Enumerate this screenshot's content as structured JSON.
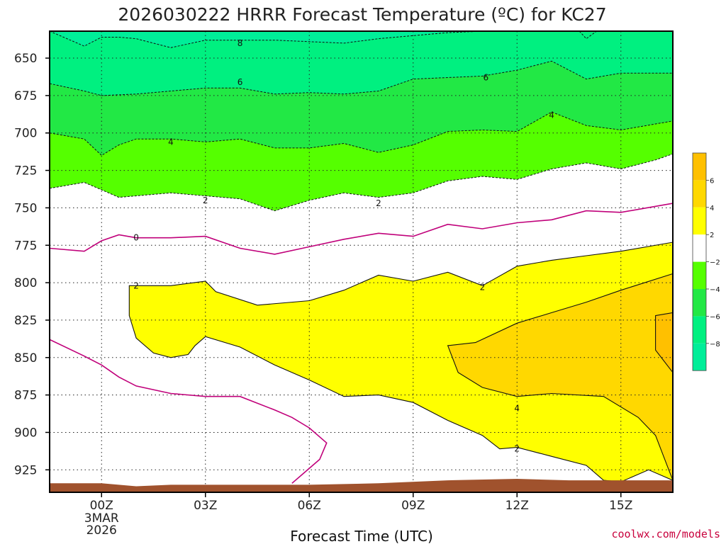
{
  "colors": {
    "frame": "#000000",
    "fill_le_neg8": "#00ee99",
    "fill_neg8_neg6": "#00f080",
    "fill_neg6_neg4": "#22e845",
    "fill_neg4_neg2": "#55ff00",
    "fill_neg2_2": "#ffffff",
    "fill_2_4": "#ffff00",
    "fill_4_6": "#ffd800",
    "fill_ge_6": "#ffc000",
    "zero_line": "#c0007a",
    "ground": "#a0522d",
    "credit": "#c8003c"
  },
  "chart_data": {
    "type": "time-height contour",
    "title": "2026030222 HRRR Forecast Temperature (ºC) for KC27",
    "xlabel": "Forecast Time (UTC)",
    "x_range_hours": [
      -1.5,
      16.5
    ],
    "x_ticks": [
      {
        "hour": 0,
        "label": "00Z",
        "sub": [
          "3MAR",
          "2026"
        ]
      },
      {
        "hour": 3,
        "label": "03Z"
      },
      {
        "hour": 6,
        "label": "06Z"
      },
      {
        "hour": 9,
        "label": "09Z"
      },
      {
        "hour": 12,
        "label": "12Z"
      },
      {
        "hour": 15,
        "label": "15Z"
      }
    ],
    "y_range_hpa": [
      632,
      940
    ],
    "y_ticks": [
      650,
      675,
      700,
      725,
      750,
      775,
      800,
      825,
      850,
      875,
      900,
      925
    ],
    "contour_labels": [
      {
        "text": "8",
        "hour": 4.0,
        "hpa": 640
      },
      {
        "text": "6",
        "hour": 4.0,
        "hpa": 666
      },
      {
        "text": "6",
        "hour": 11.1,
        "hpa": 663
      },
      {
        "text": "4",
        "hour": 13.0,
        "hpa": 688
      },
      {
        "text": "4",
        "hour": 2.0,
        "hpa": 706
      },
      {
        "text": "2",
        "hour": 3.0,
        "hpa": 745
      },
      {
        "text": "2",
        "hour": 8.0,
        "hpa": 747
      },
      {
        "text": "0",
        "hour": 1.0,
        "hpa": 770
      },
      {
        "text": "2",
        "hour": 1.0,
        "hpa": 802
      },
      {
        "text": "2",
        "hour": 11.0,
        "hpa": 803
      },
      {
        "text": "4",
        "hour": 12.0,
        "hpa": 884
      },
      {
        "text": "2",
        "hour": 12.0,
        "hpa": 911
      }
    ],
    "isotherm_0C": [
      [
        -1.5,
        777
      ],
      [
        -0.5,
        779
      ],
      [
        0,
        772
      ],
      [
        0.5,
        768
      ],
      [
        1,
        770
      ],
      [
        2,
        770
      ],
      [
        3,
        769
      ],
      [
        4,
        777
      ],
      [
        5,
        781
      ],
      [
        6,
        776
      ],
      [
        7,
        771
      ],
      [
        8,
        767
      ],
      [
        9,
        769
      ],
      [
        10,
        761
      ],
      [
        11,
        764
      ],
      [
        12,
        760
      ],
      [
        13,
        758
      ],
      [
        14,
        752
      ],
      [
        15,
        753
      ],
      [
        16,
        749
      ],
      [
        16.5,
        747
      ]
    ],
    "isotherm_0C_lower": [
      [
        -1.5,
        838
      ],
      [
        -0.5,
        849
      ],
      [
        0,
        855
      ],
      [
        0.5,
        863
      ],
      [
        1,
        869
      ],
      [
        2,
        874
      ],
      [
        3,
        876
      ],
      [
        4,
        876
      ],
      [
        5,
        885
      ],
      [
        5.5,
        890
      ],
      [
        6,
        897
      ],
      [
        6.5,
        907
      ],
      [
        6.3,
        918
      ],
      [
        5.8,
        928
      ],
      [
        5.5,
        934
      ]
    ],
    "region_2C": [
      [
        0.8,
        802
      ],
      [
        2,
        802
      ],
      [
        3,
        799
      ],
      [
        3.3,
        806
      ],
      [
        4.5,
        815
      ],
      [
        6,
        812
      ],
      [
        7,
        805
      ],
      [
        8,
        795
      ],
      [
        9,
        799
      ],
      [
        10,
        793
      ],
      [
        11,
        802
      ],
      [
        12,
        789
      ],
      [
        13,
        785
      ],
      [
        14,
        782
      ],
      [
        15,
        779
      ],
      [
        16.5,
        773
      ],
      [
        16.5,
        932
      ],
      [
        15.8,
        925
      ],
      [
        15,
        933
      ],
      [
        14.5,
        932
      ],
      [
        14,
        922
      ],
      [
        13,
        916
      ],
      [
        12,
        910
      ],
      [
        11.5,
        911
      ],
      [
        11,
        902
      ],
      [
        10,
        892
      ],
      [
        9,
        880
      ],
      [
        8,
        875
      ],
      [
        7,
        876
      ],
      [
        6,
        865
      ],
      [
        5,
        855
      ],
      [
        4,
        843
      ],
      [
        3,
        836
      ],
      [
        2.7,
        842
      ],
      [
        2.5,
        848
      ],
      [
        2,
        850
      ],
      [
        1.5,
        847
      ],
      [
        1,
        837
      ],
      [
        0.8,
        822
      ],
      [
        0.8,
        810
      ]
    ],
    "region_4C": [
      [
        10.8,
        840
      ],
      [
        12,
        827
      ],
      [
        13,
        820
      ],
      [
        14,
        813
      ],
      [
        15,
        805
      ],
      [
        16.5,
        794
      ],
      [
        16.5,
        932
      ],
      [
        16,
        902
      ],
      [
        15.5,
        890
      ],
      [
        14.5,
        876
      ],
      [
        13,
        874
      ],
      [
        12,
        876
      ],
      [
        11,
        870
      ],
      [
        10.3,
        860
      ],
      [
        10,
        842
      ]
    ],
    "region_6C": [
      [
        16,
        822
      ],
      [
        16.5,
        820
      ],
      [
        16.5,
        860
      ],
      [
        16,
        845
      ]
    ],
    "contour_neg2": [
      [
        -1.5,
        737
      ],
      [
        -0.5,
        733
      ],
      [
        0,
        738
      ],
      [
        0.5,
        743
      ],
      [
        1,
        742
      ],
      [
        2,
        740
      ],
      [
        3,
        742
      ],
      [
        4,
        744
      ],
      [
        5,
        752
      ],
      [
        6,
        745
      ],
      [
        7,
        740
      ],
      [
        8,
        743
      ],
      [
        9,
        740
      ],
      [
        10,
        732
      ],
      [
        11,
        729
      ],
      [
        12,
        731
      ],
      [
        13,
        724
      ],
      [
        14,
        720
      ],
      [
        15,
        724
      ],
      [
        16,
        718
      ],
      [
        16.5,
        714
      ]
    ],
    "contour_neg4": [
      [
        -1.5,
        700
      ],
      [
        -0.5,
        704
      ],
      [
        0,
        715
      ],
      [
        0.5,
        708
      ],
      [
        1,
        704
      ],
      [
        2,
        704
      ],
      [
        3,
        706
      ],
      [
        4,
        704
      ],
      [
        5,
        710
      ],
      [
        6,
        710
      ],
      [
        7,
        707
      ],
      [
        8,
        713
      ],
      [
        9,
        708
      ],
      [
        10,
        699
      ],
      [
        11,
        698
      ],
      [
        12,
        699
      ],
      [
        13,
        686
      ],
      [
        14,
        695
      ],
      [
        15,
        698
      ],
      [
        16,
        694
      ],
      [
        16.5,
        692
      ]
    ],
    "contour_neg6": [
      [
        -1.5,
        667
      ],
      [
        -0.5,
        672
      ],
      [
        0,
        675
      ],
      [
        1,
        674
      ],
      [
        2,
        672
      ],
      [
        3,
        670
      ],
      [
        4,
        670
      ],
      [
        5,
        674
      ],
      [
        6,
        673
      ],
      [
        7,
        674
      ],
      [
        8,
        672
      ],
      [
        9,
        664
      ],
      [
        10,
        663
      ],
      [
        11,
        662
      ],
      [
        12,
        658
      ],
      [
        13,
        652
      ],
      [
        14,
        664
      ],
      [
        15,
        660
      ],
      [
        16,
        660
      ],
      [
        16.5,
        660
      ]
    ],
    "contour_neg8": [
      [
        -1.5,
        632
      ],
      [
        -0.5,
        642
      ],
      [
        0,
        636
      ],
      [
        0.5,
        636
      ],
      [
        1,
        637
      ],
      [
        2,
        643
      ],
      [
        3,
        638
      ],
      [
        4,
        638
      ],
      [
        5,
        638
      ],
      [
        6,
        639
      ],
      [
        7,
        640
      ],
      [
        8,
        637
      ],
      [
        9,
        635
      ],
      [
        10,
        633
      ],
      [
        11,
        632
      ],
      [
        12,
        632
      ]
    ],
    "contour_neg8_b": [
      [
        13.8,
        632
      ],
      [
        14,
        637
      ],
      [
        14.3,
        632
      ]
    ],
    "ground_hpa": [
      [
        -1.5,
        934
      ],
      [
        0,
        934
      ],
      [
        1,
        936
      ],
      [
        2,
        935
      ],
      [
        4,
        935
      ],
      [
        6,
        935
      ],
      [
        8,
        934
      ],
      [
        10,
        932
      ],
      [
        12,
        931
      ],
      [
        13.5,
        932
      ],
      [
        15,
        932
      ],
      [
        16.5,
        932
      ]
    ],
    "colorbar": {
      "labels": [
        "6",
        "4",
        "2",
        "−2",
        "−4",
        "−6",
        "−8"
      ]
    },
    "credit": "coolwx.com/models"
  }
}
